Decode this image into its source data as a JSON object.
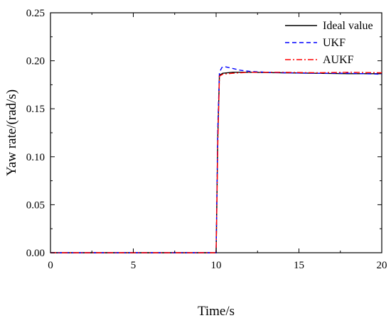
{
  "chart_data": {
    "type": "line",
    "title": "",
    "xlabel": "Time/s",
    "ylabel": "Yaw rate/(rad/s)",
    "xlim": [
      0,
      20
    ],
    "ylim": [
      0,
      0.25
    ],
    "xticks": [
      0,
      5,
      10,
      15,
      20
    ],
    "xtick_labels": [
      "0",
      "5",
      "10",
      "15",
      "20"
    ],
    "yticks": [
      0,
      0.05,
      0.1,
      0.15,
      0.2,
      0.25
    ],
    "ytick_labels": [
      "0.00",
      "0.05",
      "0.10",
      "0.15",
      "0.20",
      "0.25"
    ],
    "grid": false,
    "legend_position": "top-right",
    "series": [
      {
        "name": "Ideal value",
        "color": "#000000",
        "style": "solid",
        "x": [
          0,
          9.9,
          10.0,
          10.1,
          10.2,
          10.4,
          11,
          12,
          14,
          16,
          18,
          20
        ],
        "y": [
          0,
          0,
          0.0,
          0.12,
          0.185,
          0.187,
          0.188,
          0.188,
          0.1875,
          0.187,
          0.1865,
          0.1865
        ]
      },
      {
        "name": "UKF",
        "color": "#0000ff",
        "style": "dashed",
        "x": [
          0,
          9.9,
          10.0,
          10.1,
          10.2,
          10.35,
          10.5,
          11,
          11.5,
          12,
          13,
          14,
          16,
          18,
          20
        ],
        "y": [
          0,
          0,
          0.0,
          0.13,
          0.188,
          0.193,
          0.194,
          0.192,
          0.19,
          0.189,
          0.188,
          0.1875,
          0.187,
          0.187,
          0.186
        ]
      },
      {
        "name": "AUKF",
        "color": "#ff0000",
        "style": "dashdot",
        "x": [
          0,
          9.9,
          10.0,
          10.1,
          10.2,
          10.4,
          11,
          12,
          14,
          16,
          18,
          20
        ],
        "y": [
          0,
          0,
          0.0,
          0.11,
          0.184,
          0.186,
          0.187,
          0.188,
          0.188,
          0.1875,
          0.188,
          0.1875
        ]
      }
    ]
  }
}
